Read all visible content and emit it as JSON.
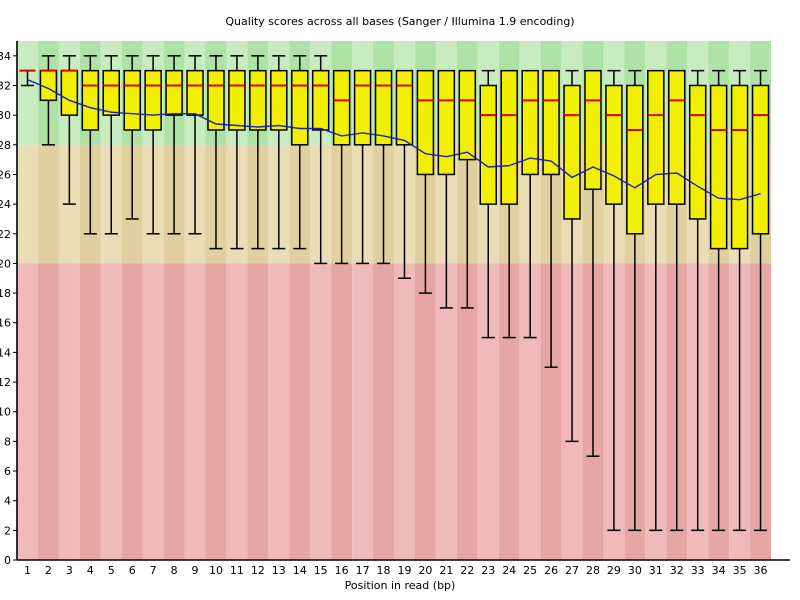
{
  "chart_data": {
    "type": "boxplot",
    "title": "Quality scores across all bases (Sanger / Illumina 1.9 encoding)",
    "xlabel": "Position in read (bp)",
    "ylabel": "",
    "ylim": [
      0,
      35
    ],
    "yticks": [
      0,
      2,
      4,
      6,
      8,
      10,
      12,
      14,
      16,
      18,
      20,
      22,
      24,
      26,
      28,
      30,
      32,
      34
    ],
    "legend": "none",
    "grid": false,
    "zones": [
      {
        "name": "good-quality-zone",
        "from": 28,
        "to": 35,
        "light": "#c8ebc0",
        "dark": "#afe2a7"
      },
      {
        "name": "medium-quality-zone",
        "from": 20,
        "to": 28,
        "light": "#eadcb4",
        "dark": "#e0d0a0"
      },
      {
        "name": "poor-quality-zone",
        "from": 0,
        "to": 20,
        "light": "#f1baba",
        "dark": "#e6a6a6"
      }
    ],
    "colors": {
      "box_fill": "#f0f000",
      "box_border": "#000000",
      "median": "#dd0000",
      "mean_line": "#2121aa",
      "whisker": "#000000",
      "axis": "#000000"
    },
    "boxes": [
      {
        "pos": 1,
        "lo": 32,
        "q1": 33,
        "med": 33,
        "q3": 33,
        "hi": 33,
        "mean": 32.4
      },
      {
        "pos": 2,
        "lo": 28,
        "q1": 31,
        "med": 33,
        "q3": 33,
        "hi": 34,
        "mean": 31.8
      },
      {
        "pos": 3,
        "lo": 24,
        "q1": 30,
        "med": 33,
        "q3": 33,
        "hi": 34,
        "mean": 31.0
      },
      {
        "pos": 4,
        "lo": 22,
        "q1": 29,
        "med": 32,
        "q3": 33,
        "hi": 34,
        "mean": 30.5
      },
      {
        "pos": 5,
        "lo": 22,
        "q1": 30,
        "med": 32,
        "q3": 33,
        "hi": 34,
        "mean": 30.2
      },
      {
        "pos": 6,
        "lo": 23,
        "q1": 29,
        "med": 32,
        "q3": 33,
        "hi": 34,
        "mean": 30.1
      },
      {
        "pos": 7,
        "lo": 22,
        "q1": 29,
        "med": 32,
        "q3": 33,
        "hi": 34,
        "mean": 30.0
      },
      {
        "pos": 8,
        "lo": 22,
        "q1": 30,
        "med": 32,
        "q3": 33,
        "hi": 34,
        "mean": 30.1
      },
      {
        "pos": 9,
        "lo": 22,
        "q1": 30,
        "med": 32,
        "q3": 33,
        "hi": 34,
        "mean": 30.1
      },
      {
        "pos": 10,
        "lo": 21,
        "q1": 29,
        "med": 32,
        "q3": 33,
        "hi": 34,
        "mean": 29.4
      },
      {
        "pos": 11,
        "lo": 21,
        "q1": 29,
        "med": 32,
        "q3": 33,
        "hi": 34,
        "mean": 29.3
      },
      {
        "pos": 12,
        "lo": 21,
        "q1": 29,
        "med": 32,
        "q3": 33,
        "hi": 34,
        "mean": 29.2
      },
      {
        "pos": 13,
        "lo": 21,
        "q1": 29,
        "med": 32,
        "q3": 33,
        "hi": 34,
        "mean": 29.3
      },
      {
        "pos": 14,
        "lo": 21,
        "q1": 28,
        "med": 32,
        "q3": 33,
        "hi": 34,
        "mean": 29.1
      },
      {
        "pos": 15,
        "lo": 20,
        "q1": 29,
        "med": 32,
        "q3": 33,
        "hi": 34,
        "mean": 29.1
      },
      {
        "pos": 16,
        "lo": 20,
        "q1": 28,
        "med": 31,
        "q3": 33,
        "hi": 33,
        "mean": 28.6
      },
      {
        "pos": 17,
        "lo": 20,
        "q1": 28,
        "med": 32,
        "q3": 33,
        "hi": 33,
        "mean": 28.8
      },
      {
        "pos": 18,
        "lo": 20,
        "q1": 28,
        "med": 32,
        "q3": 33,
        "hi": 33,
        "mean": 28.6
      },
      {
        "pos": 19,
        "lo": 19,
        "q1": 28,
        "med": 32,
        "q3": 33,
        "hi": 33,
        "mean": 28.3
      },
      {
        "pos": 20,
        "lo": 18,
        "q1": 26,
        "med": 31,
        "q3": 33,
        "hi": 33,
        "mean": 27.4
      },
      {
        "pos": 21,
        "lo": 17,
        "q1": 26,
        "med": 31,
        "q3": 33,
        "hi": 33,
        "mean": 27.2
      },
      {
        "pos": 22,
        "lo": 17,
        "q1": 27,
        "med": 31,
        "q3": 33,
        "hi": 33,
        "mean": 27.5
      },
      {
        "pos": 23,
        "lo": 15,
        "q1": 24,
        "med": 30,
        "q3": 32,
        "hi": 33,
        "mean": 26.5
      },
      {
        "pos": 24,
        "lo": 15,
        "q1": 24,
        "med": 30,
        "q3": 33,
        "hi": 33,
        "mean": 26.6
      },
      {
        "pos": 25,
        "lo": 15,
        "q1": 26,
        "med": 31,
        "q3": 33,
        "hi": 33,
        "mean": 27.1
      },
      {
        "pos": 26,
        "lo": 13,
        "q1": 26,
        "med": 31,
        "q3": 33,
        "hi": 33,
        "mean": 26.9
      },
      {
        "pos": 27,
        "lo": 8,
        "q1": 23,
        "med": 30,
        "q3": 32,
        "hi": 33,
        "mean": 25.8
      },
      {
        "pos": 28,
        "lo": 7,
        "q1": 25,
        "med": 31,
        "q3": 33,
        "hi": 33,
        "mean": 26.5
      },
      {
        "pos": 29,
        "lo": 2,
        "q1": 24,
        "med": 30,
        "q3": 32,
        "hi": 33,
        "mean": 25.9
      },
      {
        "pos": 30,
        "lo": 2,
        "q1": 22,
        "med": 29,
        "q3": 32,
        "hi": 33,
        "mean": 25.1
      },
      {
        "pos": 31,
        "lo": 2,
        "q1": 24,
        "med": 30,
        "q3": 33,
        "hi": 33,
        "mean": 26.0
      },
      {
        "pos": 32,
        "lo": 2,
        "q1": 24,
        "med": 31,
        "q3": 33,
        "hi": 33,
        "mean": 26.1
      },
      {
        "pos": 33,
        "lo": 2,
        "q1": 23,
        "med": 30,
        "q3": 32,
        "hi": 33,
        "mean": 25.2
      },
      {
        "pos": 34,
        "lo": 2,
        "q1": 21,
        "med": 29,
        "q3": 32,
        "hi": 33,
        "mean": 24.4
      },
      {
        "pos": 35,
        "lo": 2,
        "q1": 21,
        "med": 29,
        "q3": 32,
        "hi": 33,
        "mean": 24.3
      },
      {
        "pos": 36,
        "lo": 2,
        "q1": 22,
        "med": 30,
        "q3": 32,
        "hi": 33,
        "mean": 24.7
      }
    ]
  }
}
